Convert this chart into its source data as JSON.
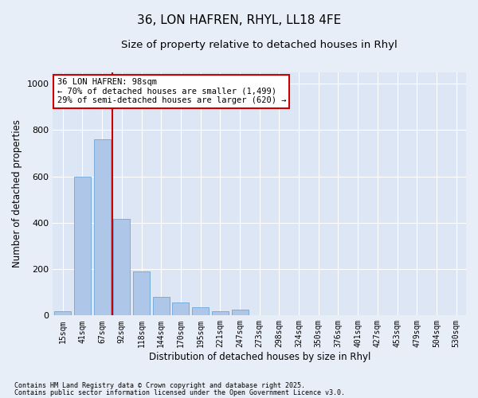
{
  "title1": "36, LON HAFREN, RHYL, LL18 4FE",
  "title2": "Size of property relative to detached houses in Rhyl",
  "xlabel": "Distribution of detached houses by size in Rhyl",
  "ylabel": "Number of detached properties",
  "categories": [
    "15sqm",
    "41sqm",
    "67sqm",
    "92sqm",
    "118sqm",
    "144sqm",
    "170sqm",
    "195sqm",
    "221sqm",
    "247sqm",
    "273sqm",
    "298sqm",
    "324sqm",
    "350sqm",
    "376sqm",
    "401sqm",
    "427sqm",
    "453sqm",
    "479sqm",
    "504sqm",
    "530sqm"
  ],
  "values": [
    20,
    600,
    760,
    415,
    190,
    80,
    55,
    35,
    20,
    25,
    0,
    0,
    0,
    0,
    0,
    0,
    0,
    0,
    0,
    0,
    0
  ],
  "bar_color": "#aec6e8",
  "bar_edge_color": "#5b9bd5",
  "vline_x_index": 3,
  "vline_color": "#cc0000",
  "annotation_text": "36 LON HAFREN: 98sqm\n← 70% of detached houses are smaller (1,499)\n29% of semi-detached houses are larger (620) →",
  "annotation_box_color": "#cc0000",
  "ylim": [
    0,
    1050
  ],
  "yticks": [
    0,
    200,
    400,
    600,
    800,
    1000
  ],
  "bg_color": "#e8eef7",
  "plot_bg_color": "#dce6f5",
  "grid_color": "#ffffff",
  "footer1": "Contains HM Land Registry data © Crown copyright and database right 2025.",
  "footer2": "Contains public sector information licensed under the Open Government Licence v3.0.",
  "title_fontsize": 11,
  "subtitle_fontsize": 9.5,
  "tick_fontsize": 7,
  "ylabel_fontsize": 8.5,
  "xlabel_fontsize": 8.5,
  "annotation_fontsize": 7.5
}
